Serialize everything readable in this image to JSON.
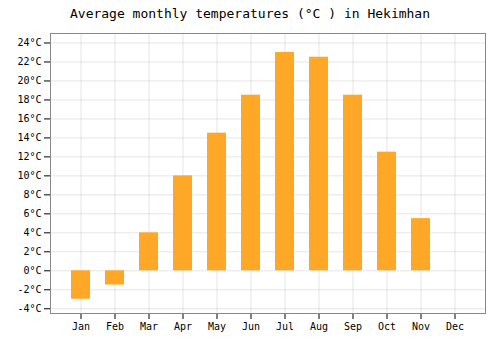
{
  "chart_data": {
    "type": "bar",
    "title": "Average monthly temperatures (°C ) in Hekimhan",
    "categories": [
      "Jan",
      "Feb",
      "Mar",
      "Apr",
      "May",
      "Jun",
      "Jul",
      "Aug",
      "Sep",
      "Oct",
      "Nov",
      "Dec"
    ],
    "values": [
      -3.0,
      -1.5,
      4.0,
      10.0,
      14.5,
      18.5,
      23.0,
      22.5,
      18.5,
      12.5,
      5.5,
      0.0
    ],
    "color": "#FFA726",
    "ylim": [
      -4.5,
      25
    ],
    "yticks": [
      {
        "value": -4,
        "label": "-4°C"
      },
      {
        "value": -2,
        "label": "-2°C"
      },
      {
        "value": 0,
        "label": "0°C"
      },
      {
        "value": 2,
        "label": "2°C"
      },
      {
        "value": 4,
        "label": "4°C"
      },
      {
        "value": 6,
        "label": "6°C"
      },
      {
        "value": 8,
        "label": "8°C"
      },
      {
        "value": 10,
        "label": "10°C"
      },
      {
        "value": 12,
        "label": "12°C"
      },
      {
        "value": 14,
        "label": "14°C"
      },
      {
        "value": 16,
        "label": "16°C"
      },
      {
        "value": 18,
        "label": "18°C"
      },
      {
        "value": 20,
        "label": "20°C"
      },
      {
        "value": 22,
        "label": "22°C"
      },
      {
        "value": 24,
        "label": "24°C"
      }
    ],
    "grid": true
  }
}
